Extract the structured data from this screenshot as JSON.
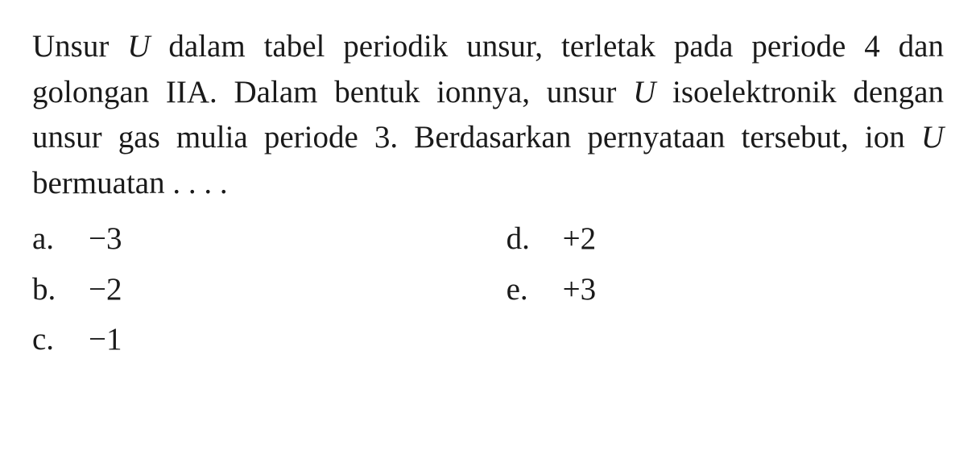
{
  "question": {
    "line1_part1": "Unsur ",
    "line1_italic1": "U",
    "line1_part2": " dalam tabel periodik unsur, terletak pada periode 4 dan golongan IIA. Dalam bentuk ionnya, unsur ",
    "line1_italic2": "U",
    "line1_part3": " isoelektronik dengan unsur gas mulia periode 3. Berdasarkan pernyataan tersebut, ion ",
    "line1_italic3": "U",
    "line1_part4": " bermuatan . . . ."
  },
  "options": {
    "a": {
      "letter": "a.",
      "value": "−3"
    },
    "b": {
      "letter": "b.",
      "value": "−2"
    },
    "c": {
      "letter": "c.",
      "value": "−1"
    },
    "d": {
      "letter": "d.",
      "value": "+2"
    },
    "e": {
      "letter": "e.",
      "value": "+3"
    }
  },
  "styling": {
    "background_color": "#ffffff",
    "text_color": "#1a1a1a",
    "font_family": "Georgia, Times New Roman, serif",
    "font_size_pt": 29,
    "line_height": 1.45
  }
}
